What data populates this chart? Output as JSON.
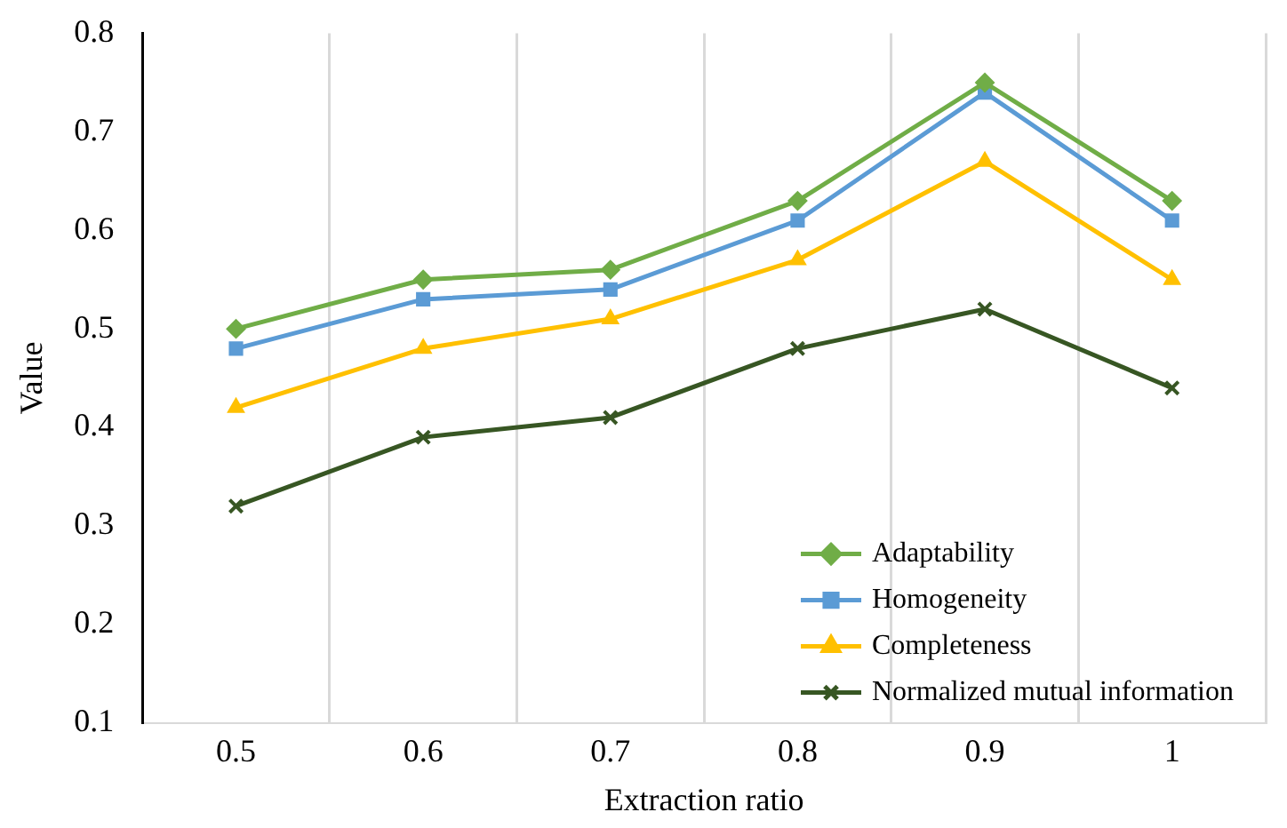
{
  "chart_data": {
    "type": "line",
    "xlabel": "Extraction ratio",
    "ylabel": "Value",
    "categories": [
      "0.5",
      "0.6",
      "0.7",
      "0.8",
      "0.9",
      "1"
    ],
    "series": [
      {
        "name": "Adaptability",
        "color": "#70ad47",
        "marker": "diamond",
        "values": [
          0.5,
          0.55,
          0.56,
          0.63,
          0.75,
          0.63
        ]
      },
      {
        "name": "Homogeneity",
        "color": "#5b9bd5",
        "marker": "square",
        "values": [
          0.48,
          0.53,
          0.54,
          0.61,
          0.74,
          0.61
        ]
      },
      {
        "name": "Completeness",
        "color": "#ffc000",
        "marker": "triangle",
        "values": [
          0.42,
          0.48,
          0.51,
          0.57,
          0.67,
          0.55
        ]
      },
      {
        "name": "Normalized mutual information",
        "color": "#375623",
        "marker": "cross",
        "values": [
          0.32,
          0.39,
          0.41,
          0.48,
          0.52,
          0.44
        ]
      }
    ],
    "ylim": [
      0.1,
      0.8
    ],
    "yticks": [
      0.1,
      0.2,
      0.3,
      0.4,
      0.5,
      0.6,
      0.7,
      0.8
    ],
    "grid": "x",
    "legend": "bottom right",
    "line_style": "solid"
  }
}
